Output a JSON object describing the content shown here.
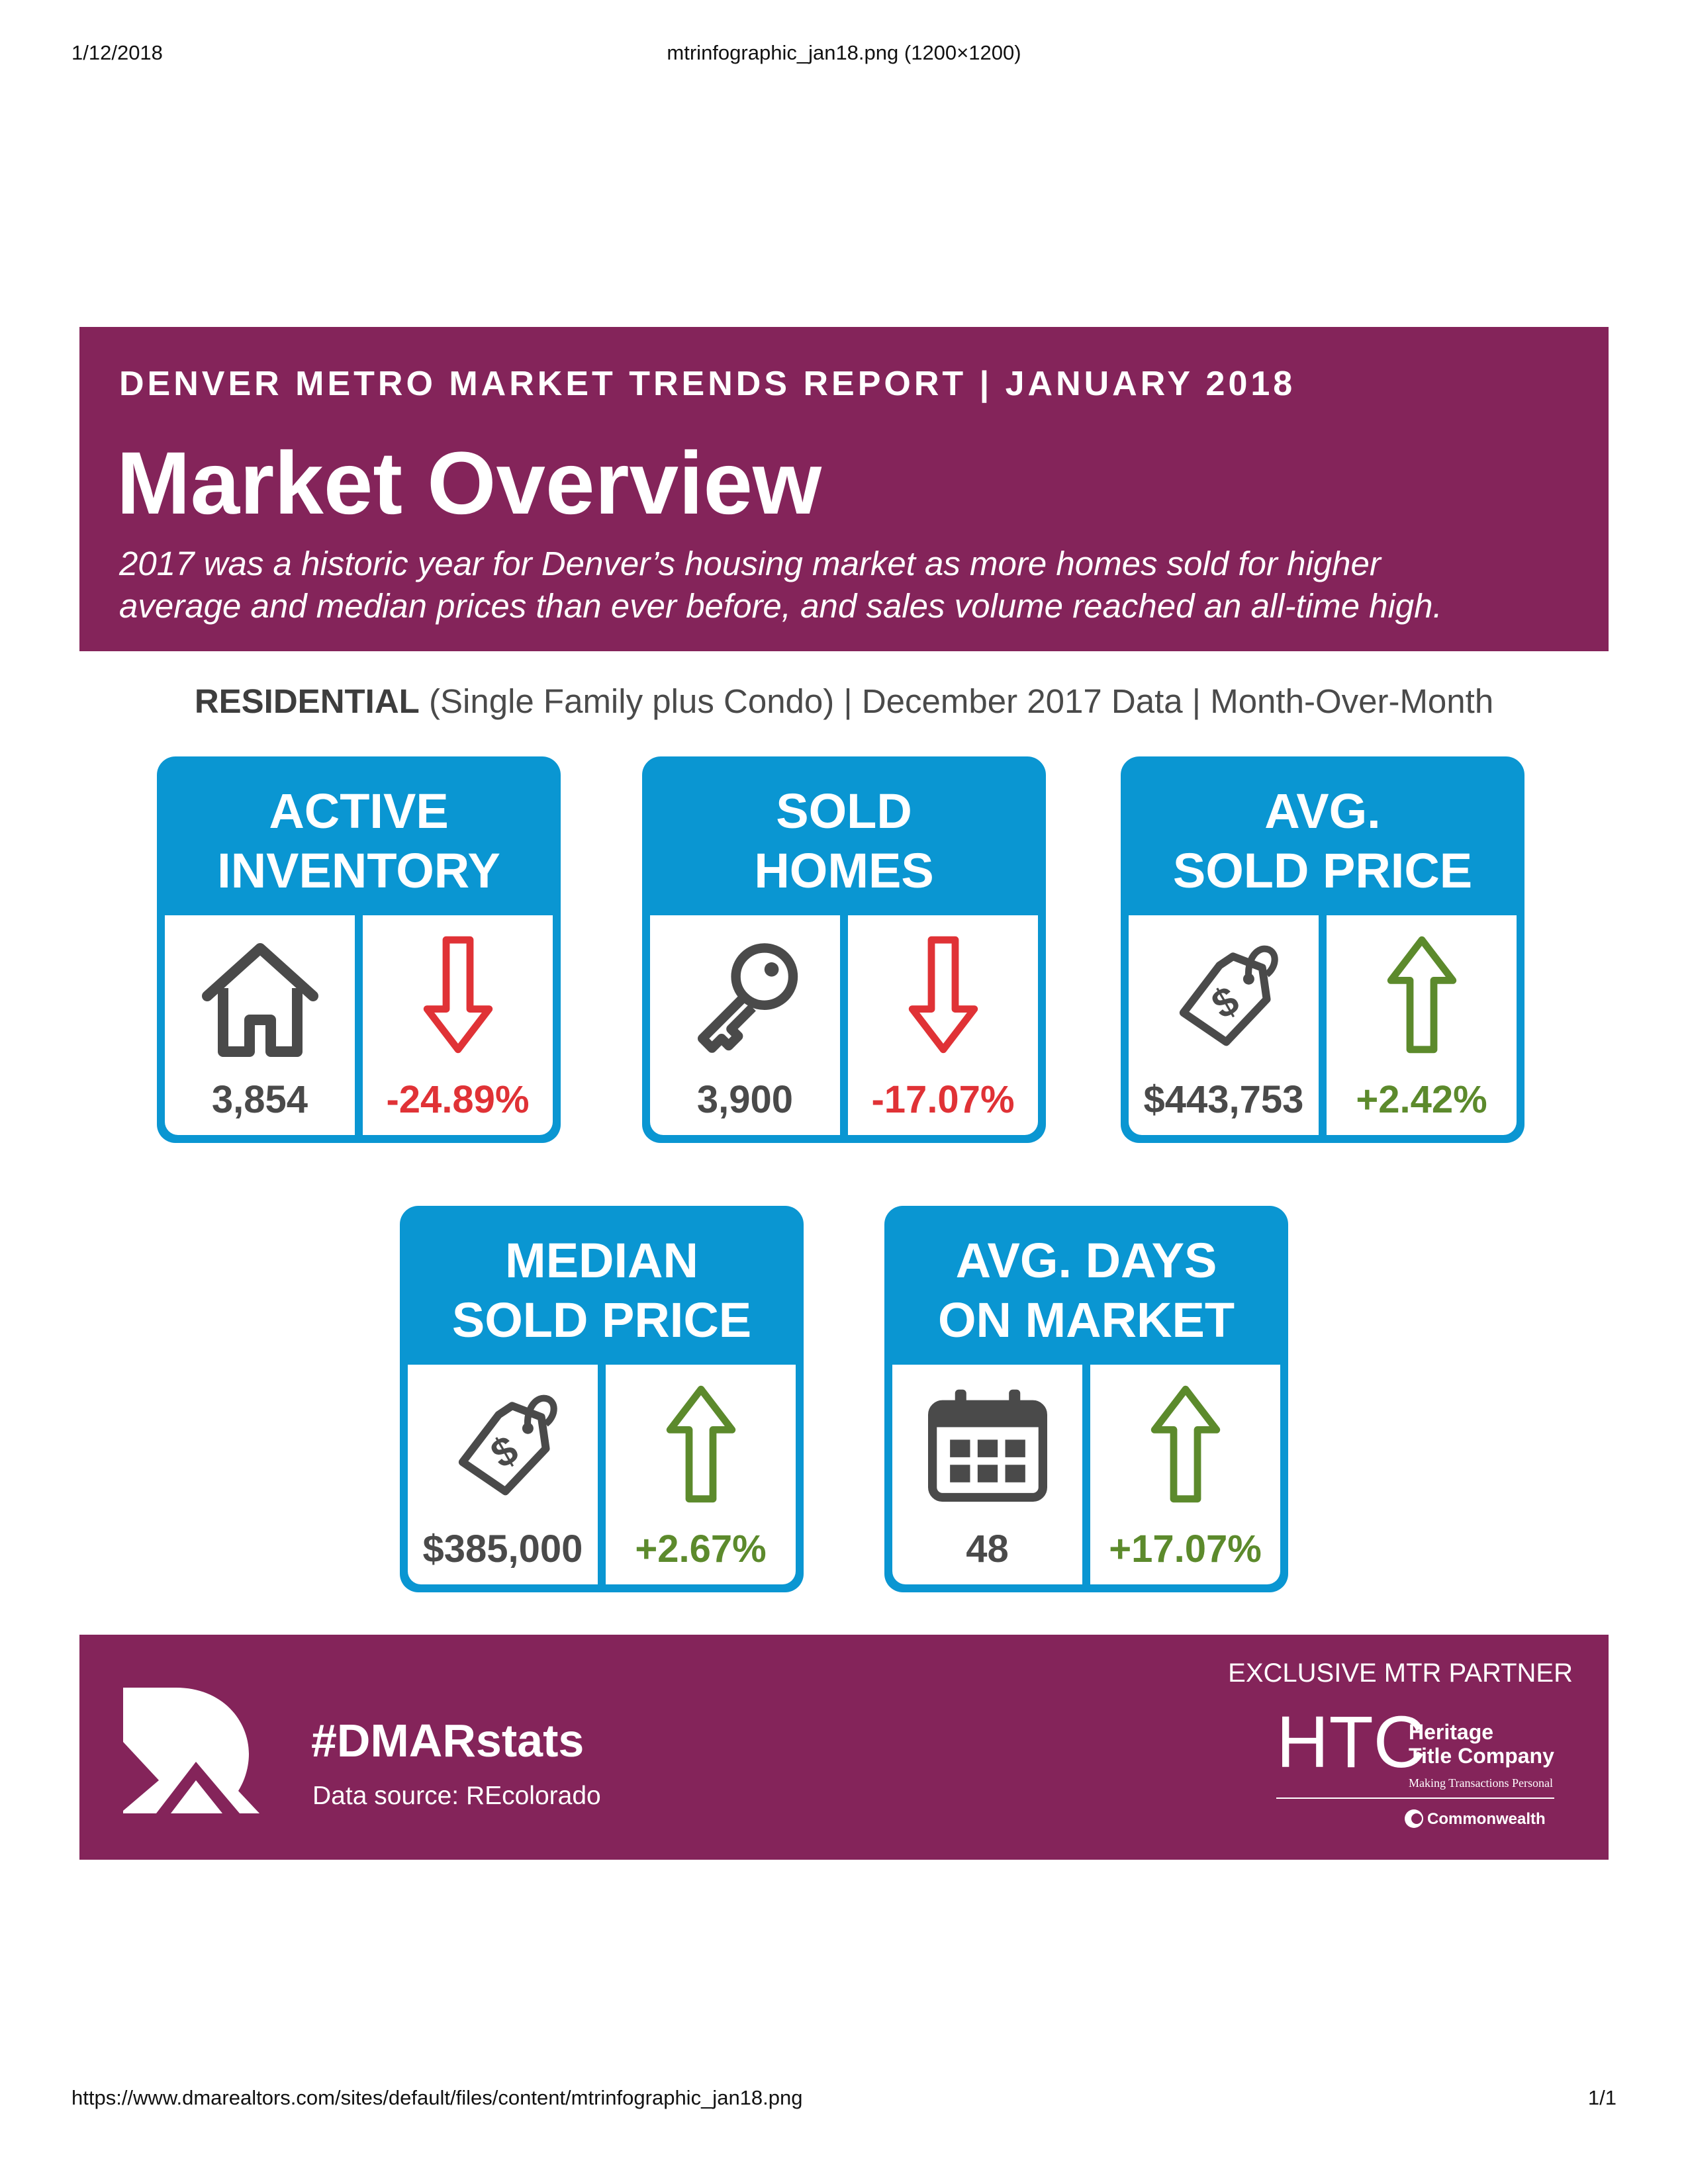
{
  "browser": {
    "date": "1/12/2018",
    "document_title": "mtrinfographic_jan18.png (1200×1200)",
    "url": "https://www.dmarealtors.com/sites/default/files/content/mtrinfographic_jan18.png",
    "page_count": "1/1"
  },
  "banner": {
    "kicker": "DENVER METRO MARKET TRENDS REPORT  |  JANUARY 2018",
    "title": "Market Overview",
    "intro_line1": "2017 was a historic year for Denver’s housing market as more homes sold for higher",
    "intro_line2": "average and median prices than ever before, and sales volume reached an all-time high."
  },
  "subhead": {
    "bold": "RESIDENTIAL",
    "rest": " (Single Family plus Condo) | December 2017 Data | Month-Over-Month"
  },
  "cards": [
    {
      "title_line1": "ACTIVE",
      "title_line2": "INVENTORY",
      "icon": "house-icon",
      "value": "3,854",
      "change": "-24.89%",
      "direction": "down"
    },
    {
      "title_line1": "SOLD",
      "title_line2": "HOMES",
      "icon": "key-icon",
      "value": "3,900",
      "change": "-17.07%",
      "direction": "down"
    },
    {
      "title_line1": "AVG.",
      "title_line2": "SOLD PRICE",
      "icon": "price-tag-icon",
      "value": "$443,753",
      "change": "+2.42%",
      "direction": "up"
    },
    {
      "title_line1": "MEDIAN",
      "title_line2": "SOLD PRICE",
      "icon": "price-tag-icon",
      "value": "$385,000",
      "change": "+2.67%",
      "direction": "up"
    },
    {
      "title_line1": "AVG. DAYS",
      "title_line2": "ON MARKET",
      "icon": "calendar-icon",
      "value": "48",
      "change": "+17.07%",
      "direction": "up"
    }
  ],
  "footer": {
    "hashtag": "#DMARstats",
    "source": "Data source: REcolorado",
    "partner_label": "EXCLUSIVE MTR PARTNER",
    "htc_mark": "HTC",
    "htc_name_line1": "Heritage",
    "htc_name_line2": "Title Company",
    "htc_tagline": "Making Transactions Personal",
    "htc_underwriter": "Commonwealth"
  },
  "colors": {
    "brand_plum": "#84245a",
    "card_blue": "#0a96d2",
    "decrease_red": "#e03236",
    "increase_green": "#5c8a2c",
    "icon_gray": "#4a4a4a"
  }
}
